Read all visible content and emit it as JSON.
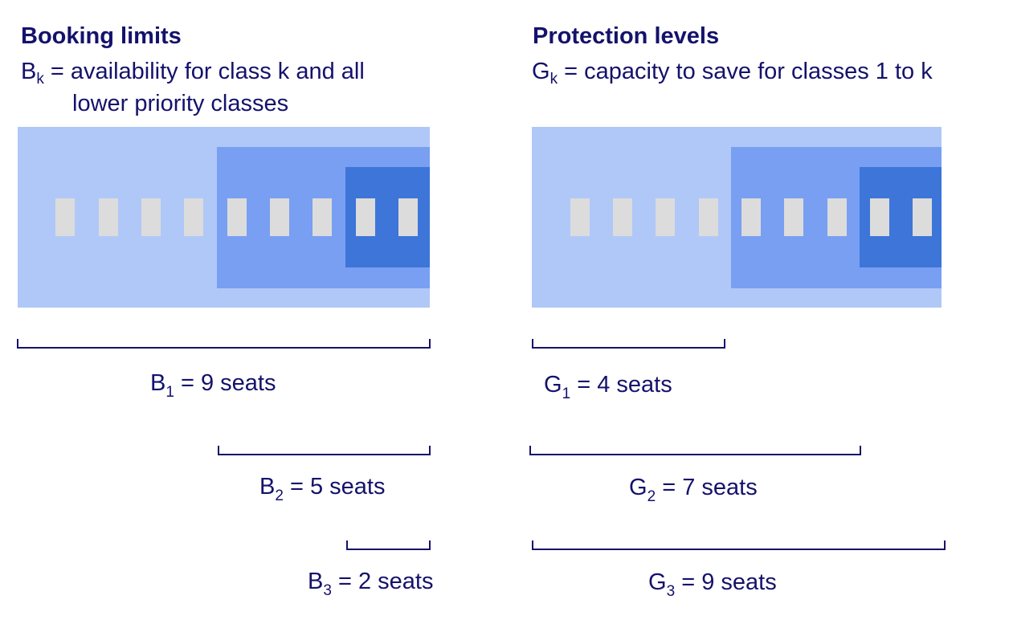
{
  "booking": {
    "title": "Booking limits",
    "symbol": "B",
    "subscript": "k",
    "definition_line1": " = availability for class k and all",
    "definition_line2": "lower priority classes",
    "labels": [
      {
        "symbol": "B",
        "sub": "1",
        "text": " = 9 seats"
      },
      {
        "symbol": "B",
        "sub": "2",
        "text": " = 5 seats"
      },
      {
        "symbol": "B",
        "sub": "3",
        "text": " = 2 seats"
      }
    ]
  },
  "protection": {
    "title": "Protection levels",
    "symbol": "G",
    "subscript": "k",
    "definition_line1": " = capacity to save for classes 1 to k",
    "labels": [
      {
        "symbol": "G",
        "sub": "1",
        "text": " = 4 seats"
      },
      {
        "symbol": "G",
        "sub": "2",
        "text": " = 7 seats"
      },
      {
        "symbol": "G",
        "sub": "3",
        "text": " = 9 seats"
      }
    ]
  },
  "seats_per_panel": 9,
  "colors": {
    "text": "#14126b",
    "class_zone_light": "#b0c8f7",
    "class_zone_medium": "#799ff2",
    "class_zone_dark": "#3d75d9",
    "seat": "#dcdcdc"
  }
}
